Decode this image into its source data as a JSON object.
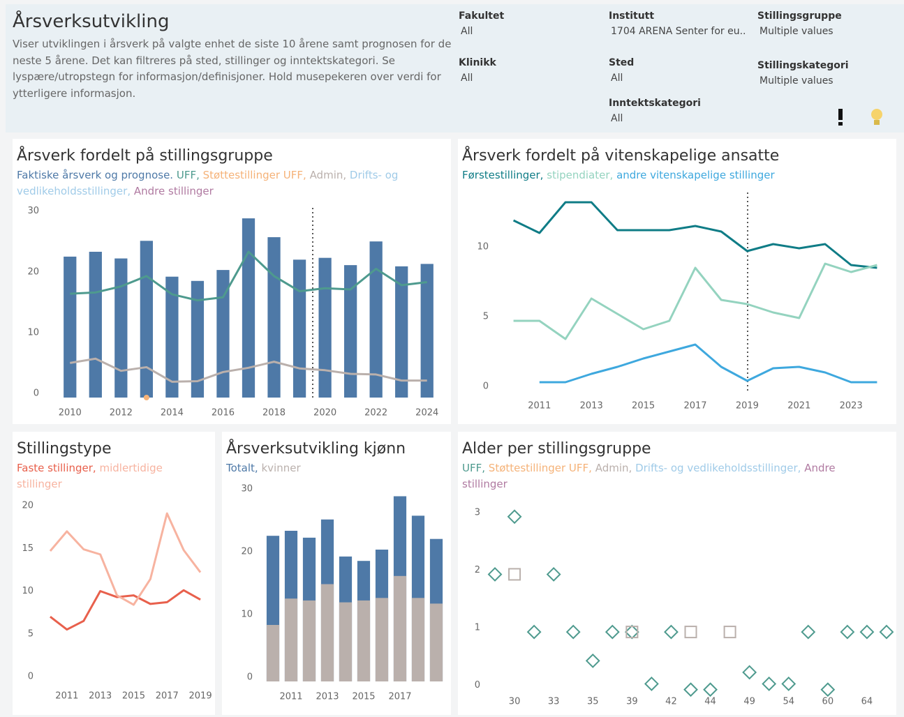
{
  "header": {
    "title": "Årsverksutvikling",
    "description": "Viser utviklingen i årsverk på valgte enhet de siste 10 årene samt prognosen for de neste 5 årene. Det kan filtreres på sted, stillinger og inntektskategori. Se lyspære/utropstegn for informasjon/definisjoner. Hold musepekeren over verdi for ytterligere informasjon.",
    "filters": [
      {
        "label": "Fakultet",
        "value": "All"
      },
      {
        "label": "Klinikk",
        "value": "All"
      },
      {
        "label": "Institutt",
        "value": "1704 ARENA Senter for eu.."
      },
      {
        "label": "Sted",
        "value": "All"
      },
      {
        "label": "Inntektskategori",
        "value": "All"
      },
      {
        "label": "Stillingsgruppe",
        "value": "Multiple values"
      },
      {
        "label": "Stillingskategori",
        "value": "Multiple values"
      }
    ]
  },
  "chart_data": [
    {
      "type": "bar",
      "title": "Årsverk fordelt på stillingsgruppe",
      "x": [
        2010,
        2011,
        2012,
        2013,
        2014,
        2015,
        2016,
        2017,
        2018,
        2019,
        2020,
        2021,
        2022,
        2023,
        2024
      ],
      "xlim": [
        2009.5,
        2024.5
      ],
      "xticks": [
        2010,
        2012,
        2014,
        2016,
        2018,
        2020,
        2022,
        2024
      ],
      "ylim": [
        0,
        31
      ],
      "yticks": [
        0,
        10,
        20,
        30
      ],
      "series": [
        {
          "name": "Faktiske årsverk og prognose.",
          "type": "bar",
          "color": "#4e79a7",
          "values": [
            23.2,
            24,
            22.9,
            25.8,
            19.9,
            19.2,
            21,
            29.5,
            26.4,
            22.7,
            23,
            21.8,
            25.7,
            21.6,
            22
          ]
        },
        {
          "name": "UFF,",
          "type": "line",
          "color": "#4e9a8e",
          "values": [
            17.1,
            17.3,
            18.3,
            20,
            17,
            16,
            16.5,
            24,
            20,
            17.5,
            18,
            17.8,
            21.2,
            18.5,
            19
          ]
        },
        {
          "name": "Støttestillinger UFF,",
          "type": "point",
          "color": "#f5b278",
          "values": [
            null,
            null,
            null,
            0,
            null,
            null,
            null,
            null,
            null,
            null,
            null,
            null,
            null,
            null,
            null
          ]
        },
        {
          "name": "Admin,",
          "type": "line",
          "color": "#bab0ac",
          "values": [
            5.7,
            6.4,
            4.4,
            5,
            2.6,
            2.7,
            4.2,
            4.9,
            5.9,
            4.8,
            4.5,
            3.9,
            3.8,
            2.8,
            2.8
          ]
        },
        {
          "name": "Drifts- og vedlikeholdsstillinger,",
          "type": "line",
          "color": "#a0cbe8",
          "values": [
            null,
            null,
            null,
            null,
            null,
            null,
            null,
            null,
            null,
            null,
            null,
            null,
            null,
            null,
            null
          ]
        },
        {
          "name": "Andre stillinger",
          "type": "line",
          "color": "#b07aa1",
          "values": [
            null,
            null,
            null,
            null,
            null,
            null,
            null,
            null,
            null,
            null,
            null,
            null,
            null,
            null,
            null
          ]
        }
      ]
    },
    {
      "type": "line",
      "title": "Årsverk fordelt på vitenskapelige ansatte",
      "x": [
        2010,
        2011,
        2012,
        2013,
        2014,
        2015,
        2016,
        2017,
        2018,
        2019,
        2020,
        2021,
        2022,
        2023,
        2024
      ],
      "xlim": [
        2009.5,
        2024.5
      ],
      "xticks": [
        2011,
        2013,
        2015,
        2017,
        2019,
        2021,
        2023
      ],
      "ylim": [
        0,
        14
      ],
      "yticks": [
        0,
        5,
        10
      ],
      "series": [
        {
          "name": "Førstestillinger,",
          "type": "line",
          "color": "#0f7c86",
          "values": [
            12.2,
            11.3,
            13.5,
            13.5,
            11.5,
            11.5,
            11.5,
            11.8,
            11.4,
            10,
            10.5,
            10.2,
            10.5,
            9,
            8.8
          ]
        },
        {
          "name": "stipendiater,",
          "type": "line",
          "color": "#94d3bf",
          "values": [
            5,
            5,
            3.7,
            6.6,
            5.5,
            4.4,
            5,
            8.8,
            6.5,
            6.2,
            5.6,
            5.2,
            9.1,
            8.5,
            9
          ]
        },
        {
          "name": "andre vitenskapelige stillinger",
          "type": "line",
          "color": "#3ea8de",
          "values": [
            null,
            0.6,
            0.6,
            1.2,
            1.7,
            2.3,
            2.8,
            3.3,
            1.7,
            0.7,
            1.6,
            1.7,
            1.3,
            0.6,
            0.6
          ]
        }
      ]
    },
    {
      "type": "line",
      "title": "Stillingstype",
      "x": [
        2010,
        2011,
        2012,
        2013,
        2014,
        2015,
        2016,
        2017,
        2018,
        2019
      ],
      "xlim": [
        2009.5,
        2019.5
      ],
      "xticks": [
        2011,
        2013,
        2015,
        2017,
        2019
      ],
      "ylim": [
        0,
        21
      ],
      "yticks": [
        0,
        5,
        10,
        15,
        20
      ],
      "series": [
        {
          "name": "Faste stillinger,",
          "type": "line",
          "color": "#e8604c",
          "values": [
            7.5,
            6,
            7,
            10.5,
            9.8,
            10,
            9,
            9.2,
            10.6,
            9.5
          ]
        },
        {
          "name": "midlertidige stillinger",
          "type": "line",
          "color": "#f7b3a0",
          "values": [
            15.2,
            17.5,
            15.4,
            14.8,
            10,
            8.9,
            11.9,
            19.6,
            15.3,
            12.7
          ]
        }
      ]
    },
    {
      "type": "bar",
      "title": "Årsverksutvikling kjønn",
      "x": [
        2010,
        2011,
        2012,
        2013,
        2014,
        2015,
        2016,
        2017,
        2018,
        2019
      ],
      "xlim": [
        2009.5,
        2019.5
      ],
      "xticks": [
        2011,
        2013,
        2015,
        2017
      ],
      "ylim": [
        0,
        31
      ],
      "yticks": [
        0,
        10,
        20,
        30
      ],
      "series": [
        {
          "name": "Totalt,",
          "type": "bar",
          "color": "#4e79a7",
          "values": [
            23.2,
            24,
            22.9,
            25.8,
            19.9,
            19.2,
            21,
            29.5,
            26.4,
            22.7
          ]
        },
        {
          "name": "kvinner",
          "type": "bar",
          "color": "#bab0ac",
          "values": [
            9,
            13.2,
            12.9,
            15.5,
            12.6,
            12.9,
            13.3,
            16.8,
            13.3,
            12.4
          ]
        }
      ]
    },
    {
      "type": "scatter",
      "title": "Alder per stillingsgruppe",
      "categories": [
        null,
        30,
        null,
        33,
        null,
        35,
        null,
        39,
        null,
        42,
        null,
        44,
        null,
        49,
        null,
        54,
        null,
        60,
        null,
        64,
        null
      ],
      "ylim": [
        -0.1,
        3.3
      ],
      "yticks": [
        0,
        1,
        2,
        3
      ],
      "series": [
        {
          "name": "UFF,",
          "marker": "diamond",
          "color": "#4e9a8e",
          "values": [
            2,
            3,
            1,
            2,
            1,
            0.5,
            1,
            1,
            0.1,
            1,
            0,
            0,
            null,
            0.3,
            0.1,
            0.1,
            1,
            0,
            1,
            1,
            1
          ]
        },
        {
          "name": "Støttestillinger UFF,",
          "marker": "diamond",
          "color": "#f5b278",
          "values": [
            null,
            null,
            null,
            null,
            null,
            null,
            null,
            null,
            null,
            null,
            null,
            null,
            null,
            null,
            null,
            null,
            null,
            null,
            null,
            null,
            null
          ]
        },
        {
          "name": "Admin,",
          "marker": "square",
          "color": "#bab0ac",
          "values": [
            null,
            2,
            null,
            null,
            null,
            null,
            null,
            1,
            null,
            null,
            1,
            null,
            1,
            null,
            null,
            null,
            null,
            null,
            null,
            null,
            null
          ]
        },
        {
          "name": "Drifts- og vedlikeholdsstillinger,",
          "marker": "diamond",
          "color": "#a0cbe8",
          "values": [
            null,
            null,
            null,
            null,
            null,
            null,
            null,
            null,
            null,
            null,
            null,
            null,
            null,
            null,
            null,
            null,
            null,
            null,
            null,
            null,
            null
          ]
        },
        {
          "name": "Andre stillinger",
          "marker": "diamond",
          "color": "#b07aa1",
          "values": [
            null,
            null,
            null,
            null,
            null,
            null,
            null,
            null,
            null,
            null,
            null,
            null,
            null,
            null,
            null,
            null,
            null,
            null,
            null,
            null,
            null
          ]
        }
      ]
    }
  ]
}
